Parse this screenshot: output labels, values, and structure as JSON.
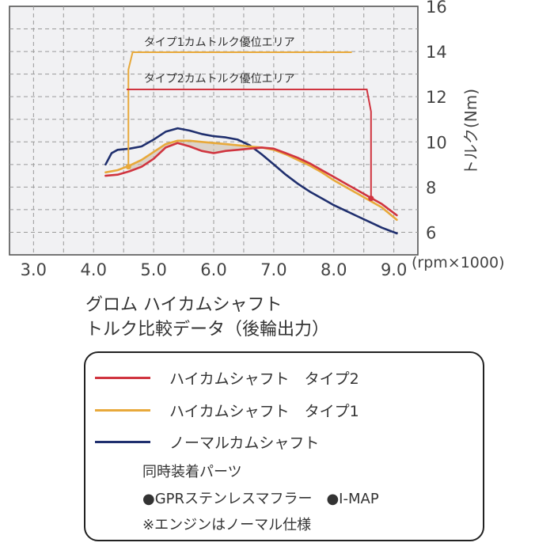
{
  "chart_data": {
    "type": "line",
    "xlabel": "(rpm×1000)",
    "ylabel": "トルク(Nm)",
    "xlim": [
      2.6,
      9.4
    ],
    "ylim": [
      5,
      16
    ],
    "x_ticks": [
      "3.0",
      "4.0",
      "5.0",
      "6.0",
      "7.0",
      "8.0",
      "9.0"
    ],
    "y_ticks": [
      "6",
      "8",
      "10",
      "12",
      "14",
      "16"
    ],
    "grid": true,
    "series": [
      {
        "name": "ハイカムシャフト　タイプ2",
        "color": "#d0343f",
        "x": [
          4.2,
          4.4,
          4.6,
          4.8,
          5.0,
          5.2,
          5.4,
          5.6,
          5.8,
          6.0,
          6.2,
          6.4,
          6.6,
          6.8,
          7.0,
          7.2,
          7.4,
          7.6,
          7.8,
          8.0,
          8.2,
          8.4,
          8.6,
          8.8,
          9.05
        ],
        "y": [
          8.5,
          8.55,
          8.7,
          8.9,
          9.25,
          9.75,
          9.95,
          9.8,
          9.6,
          9.5,
          9.6,
          9.65,
          9.7,
          9.75,
          9.7,
          9.5,
          9.3,
          9.05,
          8.75,
          8.45,
          8.15,
          7.85,
          7.55,
          7.25,
          6.75
        ]
      },
      {
        "name": "ハイカムシャフト　タイプ1",
        "color": "#e8a93a",
        "x": [
          4.2,
          4.4,
          4.6,
          4.8,
          5.0,
          5.2,
          5.4,
          5.6,
          5.8,
          6.0,
          6.2,
          6.4,
          6.6,
          6.8,
          7.0,
          7.2,
          7.4,
          7.6,
          7.8,
          8.0,
          8.2,
          8.4,
          8.6,
          8.8,
          9.05
        ],
        "y": [
          8.65,
          8.75,
          8.95,
          9.2,
          9.55,
          9.9,
          10.05,
          10.05,
          10.0,
          9.95,
          9.9,
          9.85,
          9.8,
          9.75,
          9.65,
          9.45,
          9.2,
          8.95,
          8.65,
          8.3,
          8.0,
          7.7,
          7.4,
          7.1,
          6.55
        ]
      },
      {
        "name": "ノーマルカムシャフト",
        "color": "#1f2f6e",
        "x": [
          4.2,
          4.3,
          4.4,
          4.6,
          4.8,
          5.0,
          5.2,
          5.4,
          5.6,
          5.8,
          6.0,
          6.2,
          6.4,
          6.6,
          6.8,
          7.0,
          7.2,
          7.4,
          7.6,
          7.8,
          8.0,
          8.2,
          8.4,
          8.6,
          8.8,
          9.05
        ],
        "y": [
          9.0,
          9.5,
          9.65,
          9.7,
          9.8,
          10.1,
          10.45,
          10.6,
          10.5,
          10.35,
          10.25,
          10.2,
          10.1,
          9.85,
          9.45,
          9.0,
          8.55,
          8.15,
          7.8,
          7.5,
          7.2,
          6.95,
          6.7,
          6.45,
          6.2,
          5.95
        ]
      }
    ],
    "annotations": [
      {
        "text": "タイプ1カムトルク優位エリア",
        "color": "#e8a93a",
        "marker_x": 4.58,
        "marker_y": 8.9
      },
      {
        "text": "タイプ2カムトルク優位エリア",
        "color": "#d0343f",
        "marker_x": 8.62,
        "marker_y": 7.5
      }
    ]
  },
  "caption": {
    "line1": "グロム ハイカムシャフト",
    "line2": "トルク比較データ（後輪出力）"
  },
  "legend": {
    "items": [
      {
        "label": "ハイカムシャフト　タイプ2",
        "color": "#d0343f"
      },
      {
        "label": "ハイカムシャフト　タイプ1",
        "color": "#e8a93a"
      },
      {
        "label": "ノーマルカムシャフト",
        "color": "#1f2f6e"
      }
    ],
    "parts_heading": "同時装着パーツ",
    "parts_line": "●GPRステンレスマフラー　●I-MAP",
    "engine_note": "※エンジンはノーマル仕様"
  }
}
